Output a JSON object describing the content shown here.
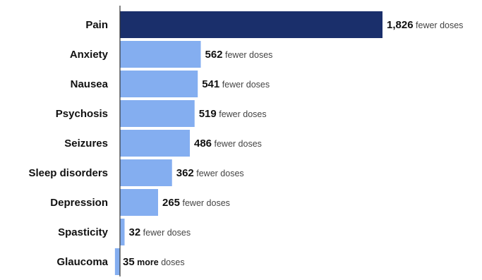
{
  "chart_data": {
    "type": "bar",
    "orientation": "horizontal",
    "categories": [
      "Pain",
      "Anxiety",
      "Nausea",
      "Psychosis",
      "Seizures",
      "Sleep disorders",
      "Depression",
      "Spasticity",
      "Glaucoma"
    ],
    "values": [
      -1826,
      -562,
      -541,
      -519,
      -486,
      -362,
      -265,
      -32,
      35
    ],
    "labels": [
      {
        "number": "1,826",
        "direction": "fewer",
        "unit": "doses"
      },
      {
        "number": "562",
        "direction": "fewer",
        "unit": "doses"
      },
      {
        "number": "541",
        "direction": "fewer",
        "unit": "doses"
      },
      {
        "number": "519",
        "direction": "fewer",
        "unit": "doses"
      },
      {
        "number": "486",
        "direction": "fewer",
        "unit": "doses"
      },
      {
        "number": "362",
        "direction": "fewer",
        "unit": "doses"
      },
      {
        "number": "265",
        "direction": "fewer",
        "unit": "doses"
      },
      {
        "number": "32",
        "direction": "fewer",
        "unit": "doses"
      },
      {
        "number": "35",
        "direction": "more",
        "unit": "doses"
      }
    ],
    "colors": {
      "highlight": "#1a2f6b",
      "bar": "#84aef0",
      "axis": "#333333"
    },
    "highlight_index": 0,
    "title": "",
    "xlabel": "",
    "ylabel": "",
    "grid": false
  }
}
